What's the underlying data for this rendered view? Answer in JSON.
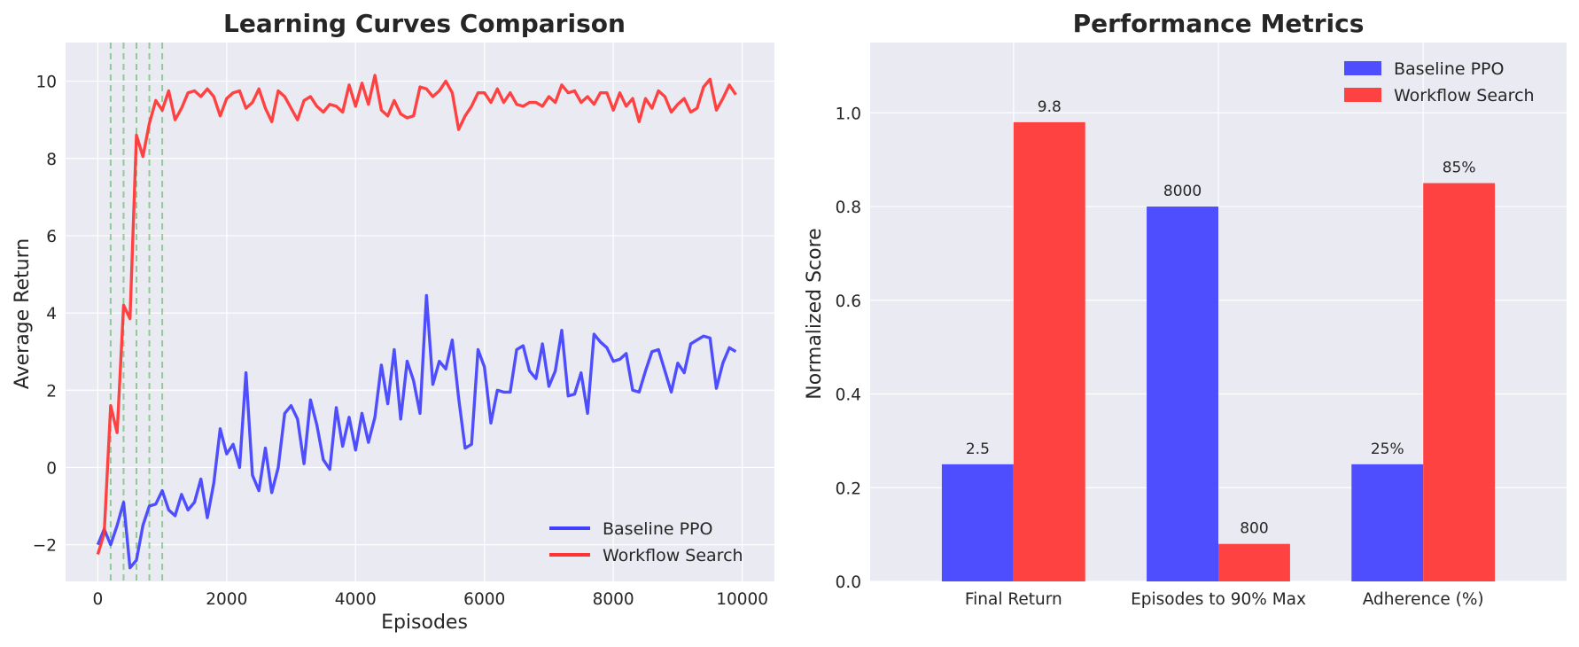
{
  "colors": {
    "baseline": "#4040ff",
    "workflow": "#ff3333",
    "phase_line": "#2ca02c",
    "plot_bg": "#eaeaf2",
    "grid": "#ffffff"
  },
  "chart_data": [
    {
      "type": "line",
      "title": "Learning Curves Comparison",
      "xlabel": "Episodes",
      "ylabel": "Average Return",
      "xlim": [
        -500,
        10500
      ],
      "ylim": [
        -2.95,
        11
      ],
      "xticks": [
        0,
        2000,
        4000,
        6000,
        8000,
        10000
      ],
      "xtick_labels": [
        "0",
        "2000",
        "4000",
        "6000",
        "8000",
        "10000"
      ],
      "yticks": [
        -2,
        0,
        2,
        4,
        6,
        8,
        10
      ],
      "ytick_labels": [
        "−2",
        "0",
        "2",
        "4",
        "6",
        "8",
        "10"
      ],
      "grid": true,
      "legend_placement": "lower-right",
      "phase_lines_x": [
        200,
        400,
        600,
        800,
        1000
      ],
      "x": [
        0,
        100,
        200,
        300,
        400,
        500,
        600,
        700,
        800,
        900,
        1000,
        1100,
        1200,
        1300,
        1400,
        1500,
        1600,
        1700,
        1800,
        1900,
        2000,
        2100,
        2200,
        2300,
        2400,
        2500,
        2600,
        2700,
        2800,
        2900,
        3000,
        3100,
        3200,
        3300,
        3400,
        3500,
        3600,
        3700,
        3800,
        3900,
        4000,
        4100,
        4200,
        4300,
        4400,
        4500,
        4600,
        4700,
        4800,
        4900,
        5000,
        5100,
        5200,
        5300,
        5400,
        5500,
        5600,
        5700,
        5800,
        5900,
        6000,
        6100,
        6200,
        6300,
        6400,
        6500,
        6600,
        6700,
        6800,
        6900,
        7000,
        7100,
        7200,
        7300,
        7400,
        7500,
        7600,
        7700,
        7800,
        7900,
        8000,
        8100,
        8200,
        8300,
        8400,
        8500,
        8600,
        8700,
        8800,
        8900,
        9000,
        9100,
        9200,
        9300,
        9400,
        9500,
        9600,
        9700,
        9800,
        9900
      ],
      "series": [
        {
          "name": "Baseline PPO",
          "color_key": "baseline",
          "values": [
            -2.0,
            -1.6,
            -2.0,
            -1.5,
            -0.9,
            -2.6,
            -2.4,
            -1.5,
            -1.0,
            -0.95,
            -0.6,
            -1.1,
            -1.25,
            -0.7,
            -1.1,
            -0.9,
            -0.3,
            -1.3,
            -0.4,
            1.0,
            0.35,
            0.6,
            0.0,
            2.45,
            -0.2,
            -0.6,
            0.5,
            -0.65,
            0.0,
            1.4,
            1.6,
            1.25,
            0.1,
            1.75,
            1.1,
            0.2,
            -0.05,
            1.55,
            0.55,
            1.3,
            0.45,
            1.4,
            0.65,
            1.3,
            2.65,
            1.65,
            3.05,
            1.25,
            2.75,
            2.25,
            1.4,
            4.45,
            2.15,
            2.75,
            2.55,
            3.3,
            1.8,
            0.5,
            0.6,
            3.05,
            2.6,
            1.15,
            2.0,
            1.95,
            1.95,
            3.05,
            3.15,
            2.5,
            2.3,
            3.2,
            2.1,
            2.5,
            3.55,
            1.85,
            1.9,
            2.45,
            1.4,
            3.45,
            3.25,
            3.1,
            2.75,
            2.8,
            2.95,
            2.0,
            1.95,
            2.5,
            3.0,
            3.05,
            2.5,
            1.95,
            2.7,
            2.45,
            3.2,
            3.3,
            3.4,
            3.35,
            2.05,
            2.7,
            3.1,
            3.0
          ]
        },
        {
          "name": "Workflow Search",
          "color_key": "workflow",
          "values": [
            -2.25,
            -1.7,
            1.6,
            0.9,
            4.2,
            3.85,
            8.6,
            8.05,
            8.9,
            9.5,
            9.25,
            9.75,
            9.0,
            9.3,
            9.7,
            9.75,
            9.6,
            9.8,
            9.6,
            9.1,
            9.55,
            9.7,
            9.75,
            9.3,
            9.45,
            9.8,
            9.3,
            8.95,
            9.75,
            9.6,
            9.3,
            9.0,
            9.5,
            9.6,
            9.35,
            9.2,
            9.4,
            9.35,
            9.2,
            9.9,
            9.35,
            9.95,
            9.4,
            10.15,
            9.25,
            9.1,
            9.5,
            9.15,
            9.05,
            9.1,
            9.85,
            9.8,
            9.6,
            9.75,
            10.0,
            9.7,
            8.75,
            9.1,
            9.35,
            9.7,
            9.7,
            9.45,
            9.8,
            9.45,
            9.7,
            9.4,
            9.35,
            9.45,
            9.45,
            9.35,
            9.6,
            9.45,
            9.9,
            9.7,
            9.75,
            9.45,
            9.6,
            9.4,
            9.7,
            9.7,
            9.25,
            9.7,
            9.35,
            9.55,
            8.95,
            9.55,
            9.3,
            9.75,
            9.6,
            9.2,
            9.4,
            9.55,
            9.2,
            9.3,
            9.85,
            10.05,
            9.25,
            9.55,
            9.9,
            9.65
          ]
        }
      ]
    },
    {
      "type": "bar",
      "title": "Performance Metrics",
      "xlabel": "",
      "ylabel": "Normalized Score",
      "categories": [
        "Final Return",
        "Episodes to 90% Max",
        "Adherence (%)"
      ],
      "ylim": [
        0,
        1.15
      ],
      "yticks": [
        0.0,
        0.2,
        0.4,
        0.6,
        0.8,
        1.0
      ],
      "ytick_labels": [
        "0.0",
        "0.2",
        "0.4",
        "0.6",
        "0.8",
        "1.0"
      ],
      "grid": true,
      "legend_placement": "top-right",
      "series": [
        {
          "name": "Baseline PPO",
          "color_key": "baseline",
          "values": [
            0.25,
            0.8,
            0.25
          ],
          "labels": [
            "2.5",
            "8000",
            "25%"
          ]
        },
        {
          "name": "Workflow Search",
          "color_key": "workflow",
          "values": [
            0.98,
            0.08,
            0.85
          ],
          "labels": [
            "9.8",
            "800",
            "85%"
          ]
        }
      ]
    }
  ]
}
